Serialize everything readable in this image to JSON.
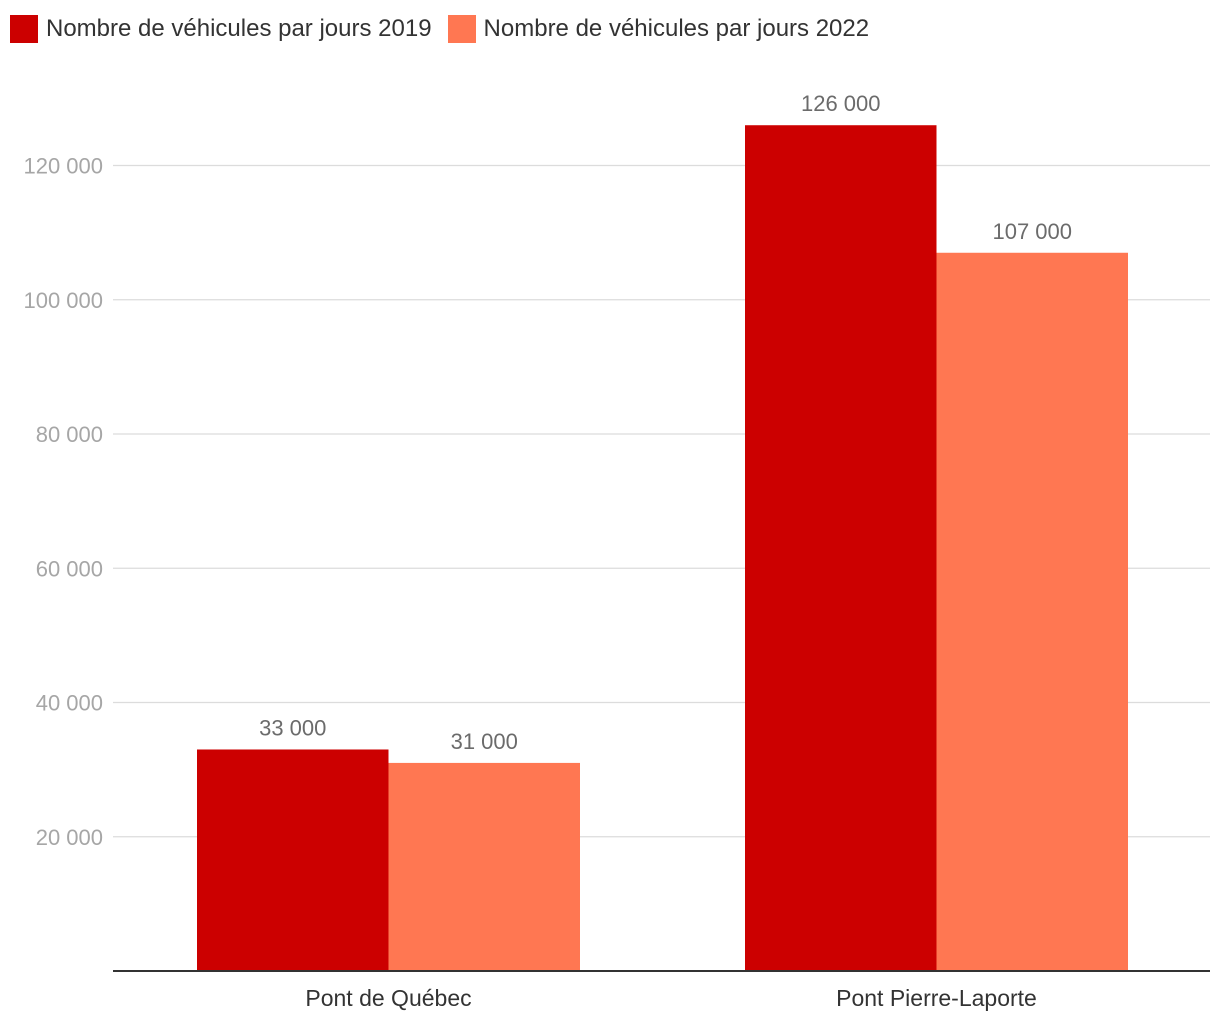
{
  "chart_data": {
    "type": "bar",
    "categories": [
      "Pont de Québec",
      "Pont Pierre-Laporte"
    ],
    "series": [
      {
        "name": "Nombre de véhicules par jours 2019",
        "values": [
          33000,
          126000
        ],
        "color": "#cc0000"
      },
      {
        "name": "Nombre de véhicules par jours 2022",
        "values": [
          31000,
          107000
        ],
        "color": "#ff7752"
      }
    ],
    "value_labels": [
      [
        "33 000",
        "126 000"
      ],
      [
        "31 000",
        "107 000"
      ]
    ],
    "y_ticks": [
      20000,
      40000,
      60000,
      80000,
      100000,
      120000
    ],
    "y_tick_labels": [
      "20 000",
      "40 000",
      "60 000",
      "80 000",
      "100 000",
      "120 000"
    ],
    "ylim": [
      0,
      140000
    ],
    "grid": true,
    "legend_position": "top-left",
    "title": "",
    "xlabel": "",
    "ylabel": ""
  }
}
